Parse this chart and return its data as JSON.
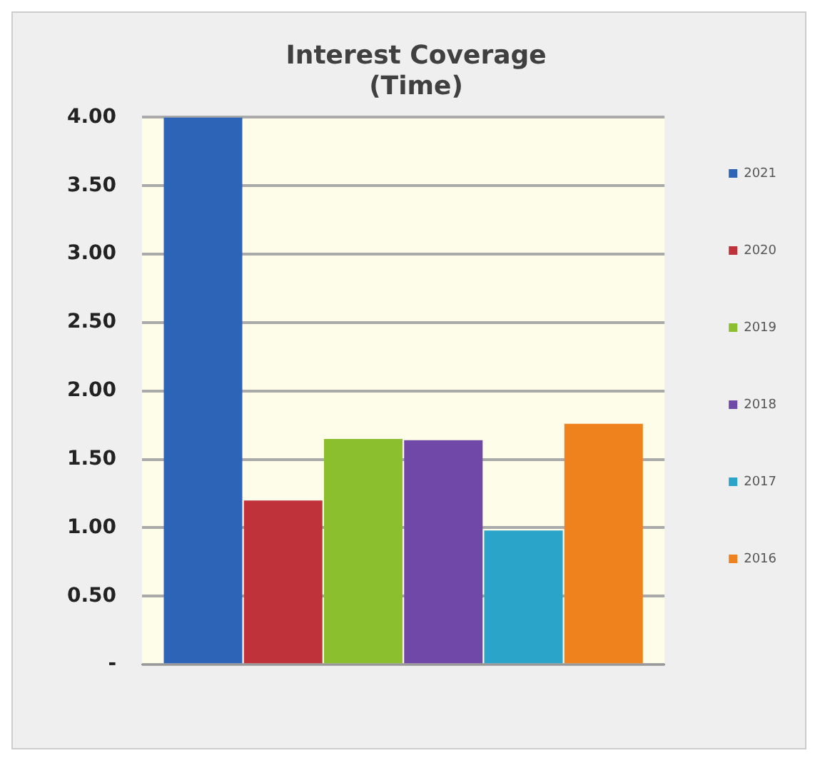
{
  "chart_data": {
    "type": "bar",
    "title": "Interest Coverage\n(Time)",
    "categories": [
      null
    ],
    "series": [
      {
        "name": "2021",
        "color": "#2e64b8",
        "values": [
          4.0
        ]
      },
      {
        "name": "2020",
        "color": "#c0323a",
        "values": [
          1.2
        ]
      },
      {
        "name": "2019",
        "color": "#8cbf2e",
        "values": [
          1.65
        ]
      },
      {
        "name": "2018",
        "color": "#7048a8",
        "values": [
          1.64
        ]
      },
      {
        "name": "2017",
        "color": "#2aa4c8",
        "values": [
          0.98
        ]
      },
      {
        "name": "2016",
        "color": "#f0821e",
        "values": [
          1.76
        ]
      }
    ],
    "ylim": [
      0,
      4
    ],
    "yticks": [
      {
        "value": 0,
        "label": "-"
      },
      {
        "value": 0.5,
        "label": "0.50"
      },
      {
        "value": 1,
        "label": "1.00"
      },
      {
        "value": 1.5,
        "label": "1.50"
      },
      {
        "value": 2,
        "label": "2.00"
      },
      {
        "value": 2.5,
        "label": "2.50"
      },
      {
        "value": 3,
        "label": "3.00"
      },
      {
        "value": 3.5,
        "label": "3.50"
      },
      {
        "value": 4,
        "label": "4.00"
      }
    ],
    "grid": "y",
    "legend": "right"
  }
}
